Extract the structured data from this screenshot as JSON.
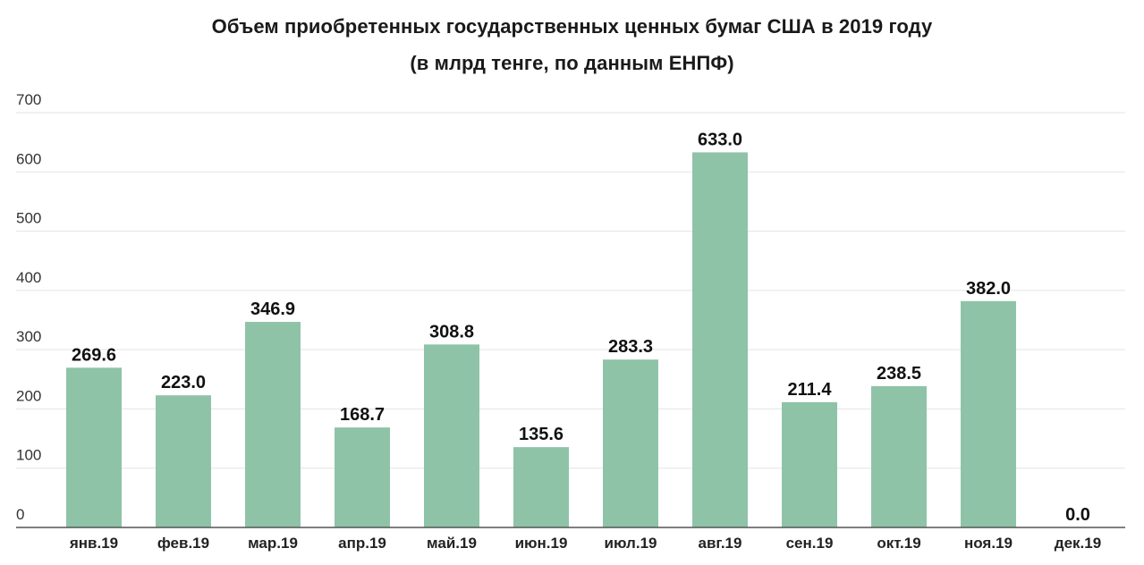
{
  "chart_data": {
    "type": "bar",
    "title": "Объем приобретенных государственных ценных бумаг США в 2019 году",
    "subtitle": "(в млрд тенге, по данным ЕНПФ)",
    "categories": [
      "янв.19",
      "фев.19",
      "мар.19",
      "апр.19",
      "май.19",
      "июн.19",
      "июл.19",
      "авг.19",
      "сен.19",
      "окт.19",
      "ноя.19",
      "дек.19"
    ],
    "values": [
      269.6,
      223.0,
      346.9,
      168.7,
      308.8,
      135.6,
      283.3,
      633.0,
      211.4,
      238.5,
      382.0,
      0.0
    ],
    "value_labels": [
      "269.6",
      "223.0",
      "346.9",
      "168.7",
      "308.8",
      "135.6",
      "283.3",
      "633.0",
      "211.4",
      "238.5",
      "382.0",
      "0.0"
    ],
    "xlabel": "",
    "ylabel": "",
    "ylim": [
      0,
      700
    ],
    "yticks": [
      "0",
      "100",
      "200",
      "300",
      "400",
      "500",
      "600",
      "700"
    ],
    "grid": true,
    "bar_color": "#8fc3a8",
    "grid_color": "#e3e3e3",
    "axis_color": "#555555"
  }
}
